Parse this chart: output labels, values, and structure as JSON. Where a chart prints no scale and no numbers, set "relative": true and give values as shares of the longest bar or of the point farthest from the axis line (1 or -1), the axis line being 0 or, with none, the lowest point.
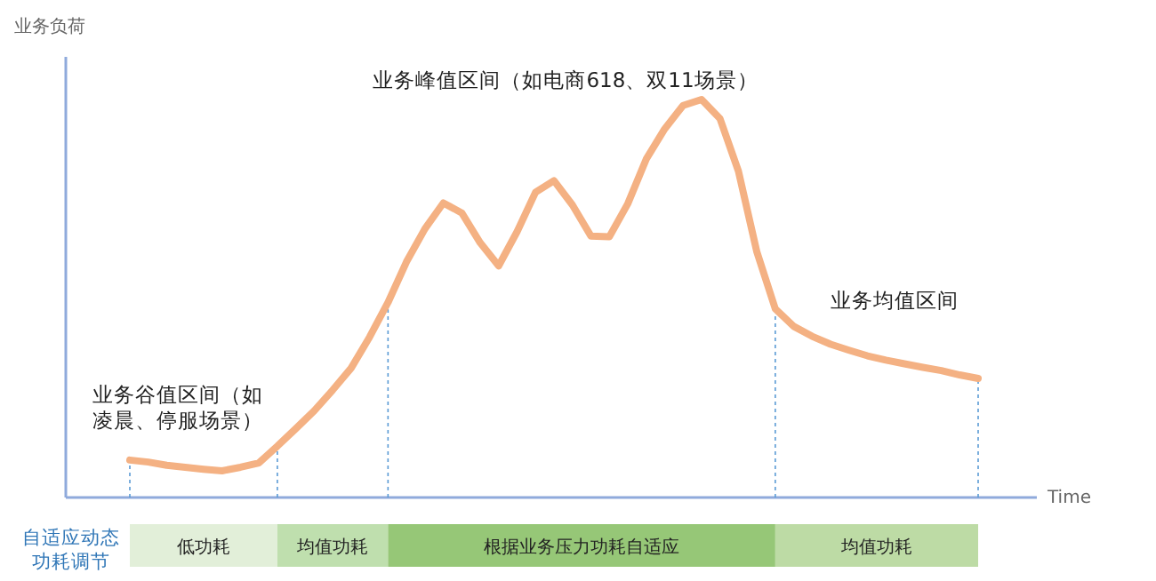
{
  "chart_data": {
    "type": "line",
    "relative": true,
    "ylabel": "业务负荷",
    "xlabel": "Time",
    "line_style": "solid",
    "categories": [
      null,
      null,
      null,
      null,
      null,
      null,
      null,
      null,
      null,
      null,
      null,
      null,
      null,
      null,
      null,
      null,
      null,
      null,
      null,
      null,
      null,
      null,
      null,
      null,
      null,
      null,
      null,
      null,
      null,
      null,
      null,
      null,
      null,
      null,
      null,
      null,
      null,
      null,
      null,
      null,
      null,
      null,
      null,
      null,
      null,
      null,
      null
    ],
    "series": [
      {
        "color": "#f4b183",
        "values": [
          0.094,
          0.089,
          0.081,
          0.076,
          0.071,
          0.067,
          0.076,
          0.087,
          0.129,
          0.173,
          0.218,
          0.27,
          0.325,
          0.403,
          0.49,
          0.592,
          0.675,
          0.74,
          0.715,
          0.64,
          0.582,
          0.668,
          0.767,
          0.796,
          0.735,
          0.657,
          0.655,
          0.738,
          0.85,
          0.926,
          0.985,
          1,
          0.952,
          0.82,
          0.617,
          0.474,
          0.43,
          0.405,
          0.385,
          0.37,
          0.356,
          0.345,
          0.336,
          0.327,
          0.319,
          0.308,
          0.299
        ]
      }
    ],
    "annotations": [
      "业务谷值区间（如凌晨、停服场景）",
      "业务峰值区间（如电商618、双11场景）",
      "业务均值区间",
      "自适应动态功耗调节",
      "低功耗",
      "均值功耗",
      "根据业务压力功耗自适应",
      "均值功耗"
    ]
  }
}
